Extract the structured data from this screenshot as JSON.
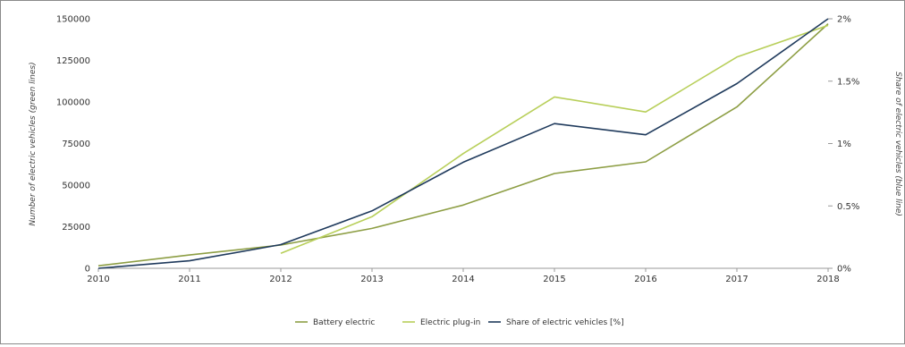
{
  "chart_data": {
    "type": "line",
    "x": [
      2010,
      2011,
      2012,
      2013,
      2014,
      2015,
      2016,
      2017,
      2018
    ],
    "x_ticks": [
      "2010",
      "2011",
      "2012",
      "2013",
      "2014",
      "2015",
      "2016",
      "2017",
      "2018"
    ],
    "xlim": [
      2010,
      2018
    ],
    "y_left": {
      "label": "Number of electric vehicles (green lines)",
      "ylim": [
        0,
        150000
      ],
      "ticks": [
        0,
        25000,
        50000,
        75000,
        100000,
        125000,
        150000
      ],
      "tick_labels": [
        "0",
        "25000",
        "50000",
        "75000",
        "100000",
        "125000",
        "150000"
      ]
    },
    "y_right": {
      "label": "Share of electric vehicles (blue line)",
      "ylim": [
        0,
        2
      ],
      "ticks": [
        0,
        0.5,
        1,
        1.5,
        2
      ],
      "tick_labels": [
        "0%",
        "0.5%",
        "1%",
        "1.5%",
        "2%"
      ]
    },
    "series": [
      {
        "name": "Battery electric",
        "axis": "left",
        "color": "#8d9e44",
        "x": [
          2010,
          2011,
          2012,
          2013,
          2014,
          2015,
          2016,
          2017,
          2018
        ],
        "values": [
          1500,
          8000,
          14000,
          24000,
          38000,
          57000,
          64000,
          97000,
          147000
        ]
      },
      {
        "name": "Electric plug-in",
        "axis": "left",
        "color": "#b8cf5a",
        "x": [
          2012,
          2013,
          2014,
          2015,
          2016,
          2017,
          2018
        ],
        "values": [
          9000,
          31000,
          69000,
          103000,
          94000,
          127000,
          146000
        ]
      },
      {
        "name": "Share of electric vehicles [%]",
        "axis": "right",
        "color": "#1f3a5c",
        "x": [
          2010,
          2011,
          2012,
          2013,
          2014,
          2015,
          2016,
          2017,
          2018
        ],
        "values": [
          0.0,
          0.06,
          0.19,
          0.46,
          0.85,
          1.16,
          1.07,
          1.48,
          2.0
        ]
      }
    ],
    "axis_color": "#999999",
    "grid": false,
    "legend_position": "bottom-center"
  }
}
